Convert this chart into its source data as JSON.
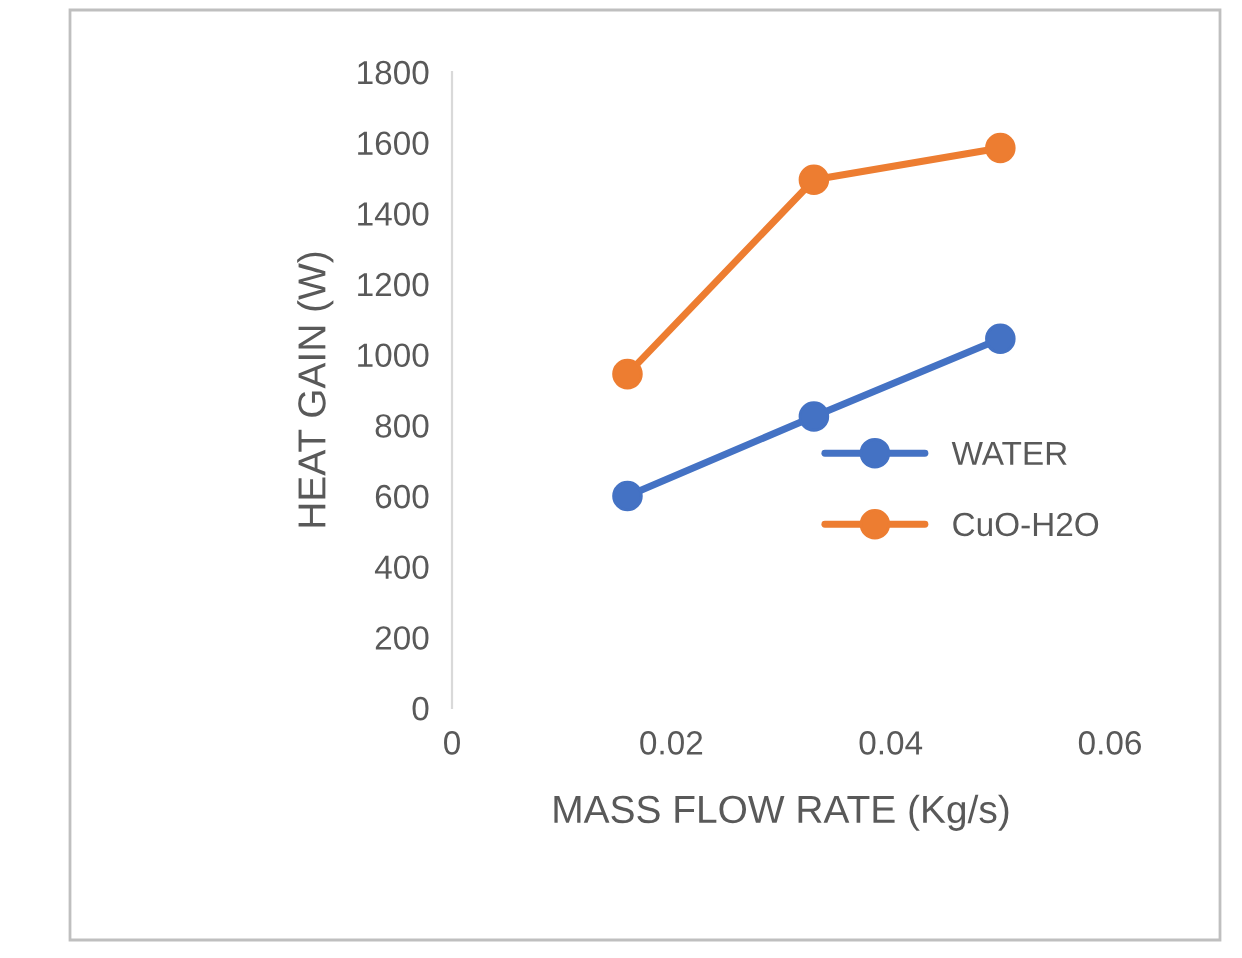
{
  "chart_data": {
    "type": "line",
    "xlabel": "MASS FLOW RATE (Kg/s)",
    "ylabel": "HEAT GAIN (W)",
    "series": [
      {
        "name": "WATER",
        "color": "#4472c4",
        "x": [
          0.016,
          0.033,
          0.05
        ],
        "values": [
          600,
          825,
          1045
        ]
      },
      {
        "name": "CuO-H2O",
        "color": "#ed7d31",
        "x": [
          0.016,
          0.033,
          0.05
        ],
        "values": [
          945,
          1495,
          1585
        ]
      }
    ],
    "xlim": [
      0,
      0.06
    ],
    "xticks": [
      {
        "value": 0,
        "label": "0"
      },
      0.02,
      0.04,
      0.06
    ],
    "ylim": [
      0,
      1800
    ],
    "yticks": [
      0,
      200,
      400,
      600,
      800,
      1000,
      1200,
      1400,
      1600,
      1800
    ],
    "grid": false,
    "legend": "right",
    "marker": "circle",
    "line_style": "solid"
  }
}
